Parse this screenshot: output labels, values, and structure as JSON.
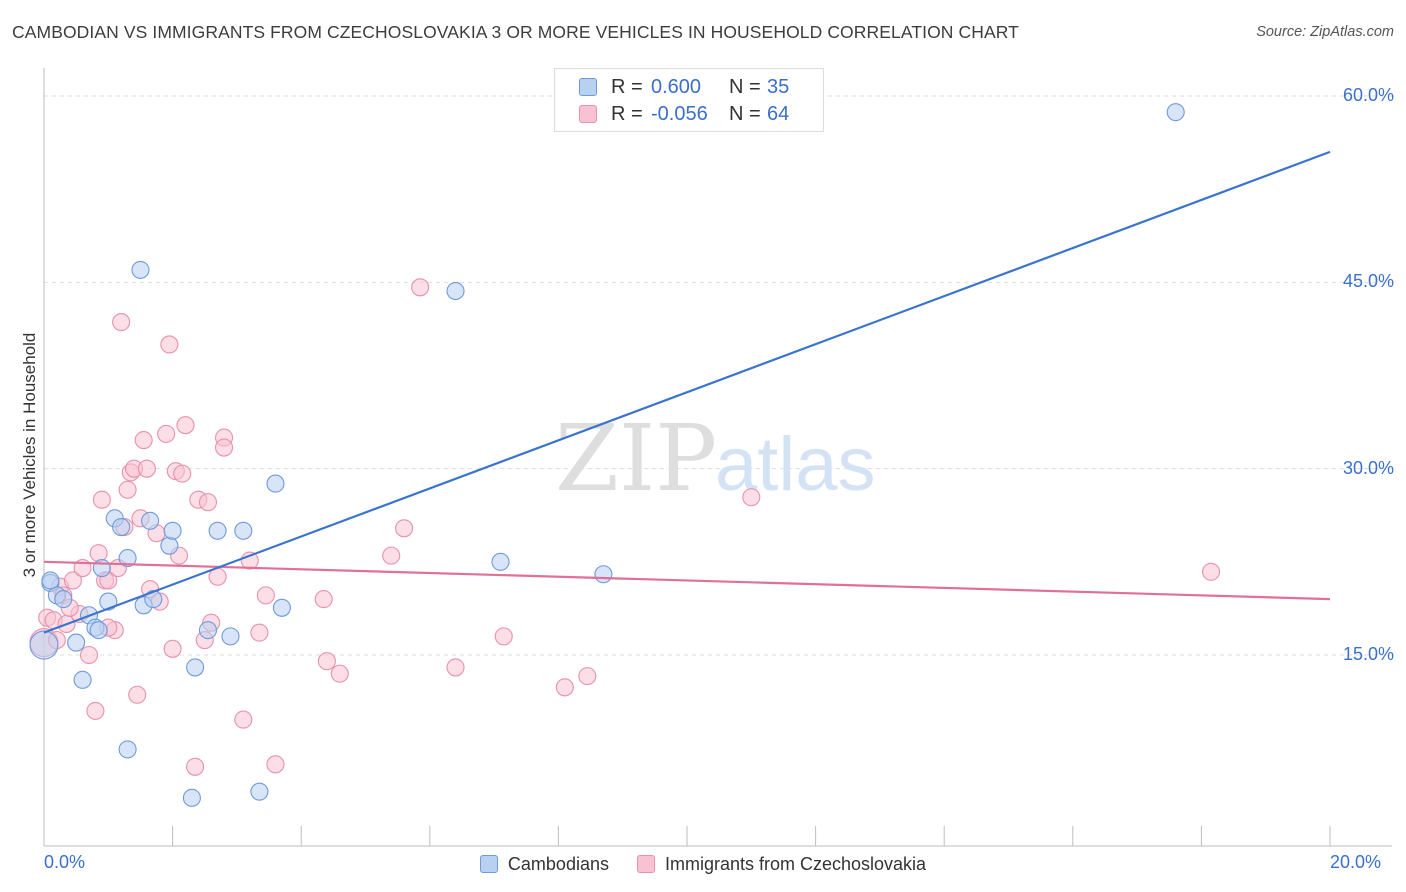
{
  "header": {
    "title": "CAMBODIAN VS IMMIGRANTS FROM CZECHOSLOVAKIA 3 OR MORE VEHICLES IN HOUSEHOLD CORRELATION CHART",
    "source": "Source: ZipAtlas.com"
  },
  "legend": {
    "rows": [
      {
        "r_label": "R =",
        "r_value": "0.600",
        "n_label": "N =",
        "n_value": "35"
      },
      {
        "r_label": "R =",
        "r_value": "-0.056",
        "n_label": "N =",
        "n_value": "64"
      }
    ]
  },
  "watermark": {
    "zip": "ZIP",
    "atlas": "atlas"
  },
  "colors": {
    "blue_fill": "#b8d0f2",
    "blue_stroke": "#6f9ad9",
    "blue_line": "#3a74cf",
    "pink_fill": "#f7c2d2",
    "pink_stroke": "#e891ae",
    "pink_line": "#e07099",
    "grid": "#dddddd",
    "axis_label": "#3a6fcf"
  },
  "chart_data": {
    "type": "scatter",
    "title": "CAMBODIAN VS IMMIGRANTS FROM CZECHOSLOVAKIA 3 OR MORE VEHICLES IN HOUSEHOLD CORRELATION CHART",
    "xlabel": "",
    "ylabel": "3 or more Vehicles in Household",
    "xlim": [
      0,
      20
    ],
    "ylim": [
      0,
      62
    ],
    "x_tick_labels": [
      "0.0%",
      "20.0%"
    ],
    "y_ticks": [
      15,
      30,
      45,
      60
    ],
    "y_tick_labels": [
      "15.0%",
      "30.0%",
      "45.0%",
      "60.0%"
    ],
    "grid": true,
    "legend_position": "bottom",
    "series": [
      {
        "name": "Cambodians",
        "r": 0.6,
        "n": 35,
        "trend": {
          "x0": 0,
          "y0": 16.8,
          "x1": 20,
          "y1": 55.5
        },
        "points": [
          {
            "x": 0.0,
            "y": 15.8,
            "big": true
          },
          {
            "x": 0.1,
            "y": 20.8
          },
          {
            "x": 0.2,
            "y": 19.8
          },
          {
            "x": 0.3,
            "y": 19.5
          },
          {
            "x": 0.5,
            "y": 16.0
          },
          {
            "x": 0.6,
            "y": 13.0
          },
          {
            "x": 0.7,
            "y": 18.2
          },
          {
            "x": 0.8,
            "y": 17.2
          },
          {
            "x": 0.85,
            "y": 17.0
          },
          {
            "x": 0.9,
            "y": 22.0
          },
          {
            "x": 1.0,
            "y": 19.3
          },
          {
            "x": 1.1,
            "y": 26.0
          },
          {
            "x": 1.2,
            "y": 25.3
          },
          {
            "x": 1.3,
            "y": 22.8
          },
          {
            "x": 1.5,
            "y": 46.0
          },
          {
            "x": 1.55,
            "y": 19.0
          },
          {
            "x": 1.65,
            "y": 25.8
          },
          {
            "x": 1.7,
            "y": 19.5
          },
          {
            "x": 1.95,
            "y": 23.8
          },
          {
            "x": 2.0,
            "y": 25.0
          },
          {
            "x": 2.3,
            "y": 3.5
          },
          {
            "x": 2.35,
            "y": 14.0
          },
          {
            "x": 2.55,
            "y": 17.0
          },
          {
            "x": 2.7,
            "y": 25.0
          },
          {
            "x": 2.9,
            "y": 16.5
          },
          {
            "x": 3.1,
            "y": 25.0
          },
          {
            "x": 3.35,
            "y": 4.0
          },
          {
            "x": 3.6,
            "y": 28.8
          },
          {
            "x": 3.7,
            "y": 18.8
          },
          {
            "x": 6.4,
            "y": 44.3
          },
          {
            "x": 7.1,
            "y": 22.5
          },
          {
            "x": 8.7,
            "y": 21.5
          },
          {
            "x": 17.6,
            "y": 58.7
          },
          {
            "x": 1.3,
            "y": 7.4
          },
          {
            "x": 0.1,
            "y": 21.0
          }
        ]
      },
      {
        "name": "Immigrants from Czechoslovakia",
        "r": -0.056,
        "n": 64,
        "trend": {
          "x0": 0,
          "y0": 22.5,
          "x1": 20,
          "y1": 19.5
        },
        "points": [
          {
            "x": 0.0,
            "y": 16.0,
            "big": true
          },
          {
            "x": 0.05,
            "y": 18.0
          },
          {
            "x": 0.15,
            "y": 17.8
          },
          {
            "x": 0.25,
            "y": 20.5
          },
          {
            "x": 0.3,
            "y": 19.8
          },
          {
            "x": 0.35,
            "y": 17.5
          },
          {
            "x": 0.45,
            "y": 21.0
          },
          {
            "x": 0.55,
            "y": 18.3
          },
          {
            "x": 0.6,
            "y": 22.0
          },
          {
            "x": 0.7,
            "y": 15.0
          },
          {
            "x": 0.8,
            "y": 10.5
          },
          {
            "x": 0.85,
            "y": 23.2
          },
          {
            "x": 0.9,
            "y": 27.5
          },
          {
            "x": 0.95,
            "y": 21.0
          },
          {
            "x": 1.0,
            "y": 21.0
          },
          {
            "x": 1.1,
            "y": 17.0
          },
          {
            "x": 1.15,
            "y": 22.0
          },
          {
            "x": 1.2,
            "y": 41.8
          },
          {
            "x": 1.25,
            "y": 25.3
          },
          {
            "x": 1.3,
            "y": 28.3
          },
          {
            "x": 1.35,
            "y": 29.7
          },
          {
            "x": 1.4,
            "y": 30.0
          },
          {
            "x": 1.45,
            "y": 11.8
          },
          {
            "x": 1.5,
            "y": 26.0
          },
          {
            "x": 1.55,
            "y": 32.3
          },
          {
            "x": 1.6,
            "y": 30.0
          },
          {
            "x": 1.65,
            "y": 20.3
          },
          {
            "x": 1.75,
            "y": 24.8
          },
          {
            "x": 1.8,
            "y": 19.3
          },
          {
            "x": 1.95,
            "y": 40.0
          },
          {
            "x": 1.9,
            "y": 32.8
          },
          {
            "x": 2.0,
            "y": 15.5
          },
          {
            "x": 2.05,
            "y": 29.8
          },
          {
            "x": 2.1,
            "y": 23.0
          },
          {
            "x": 2.15,
            "y": 29.6
          },
          {
            "x": 2.2,
            "y": 33.5
          },
          {
            "x": 2.35,
            "y": 6.0
          },
          {
            "x": 2.4,
            "y": 27.5
          },
          {
            "x": 2.5,
            "y": 16.2
          },
          {
            "x": 2.55,
            "y": 27.3
          },
          {
            "x": 2.6,
            "y": 17.6
          },
          {
            "x": 2.7,
            "y": 21.3
          },
          {
            "x": 2.8,
            "y": 32.5
          },
          {
            "x": 2.8,
            "y": 31.7
          },
          {
            "x": 3.1,
            "y": 9.8
          },
          {
            "x": 3.2,
            "y": 22.6
          },
          {
            "x": 3.35,
            "y": 16.8
          },
          {
            "x": 3.45,
            "y": 19.8
          },
          {
            "x": 3.6,
            "y": 6.2
          },
          {
            "x": 4.35,
            "y": 19.5
          },
          {
            "x": 4.4,
            "y": 14.5
          },
          {
            "x": 4.6,
            "y": 13.5
          },
          {
            "x": 5.4,
            "y": 23.0
          },
          {
            "x": 5.6,
            "y": 25.2
          },
          {
            "x": 5.85,
            "y": 44.6
          },
          {
            "x": 6.4,
            "y": 14.0
          },
          {
            "x": 7.15,
            "y": 16.5
          },
          {
            "x": 8.1,
            "y": 12.4
          },
          {
            "x": 8.45,
            "y": 13.3
          },
          {
            "x": 11.0,
            "y": 27.7
          },
          {
            "x": 18.15,
            "y": 21.7
          },
          {
            "x": 0.2,
            "y": 16.2
          },
          {
            "x": 0.4,
            "y": 18.8
          },
          {
            "x": 1.0,
            "y": 17.2
          }
        ]
      }
    ]
  }
}
